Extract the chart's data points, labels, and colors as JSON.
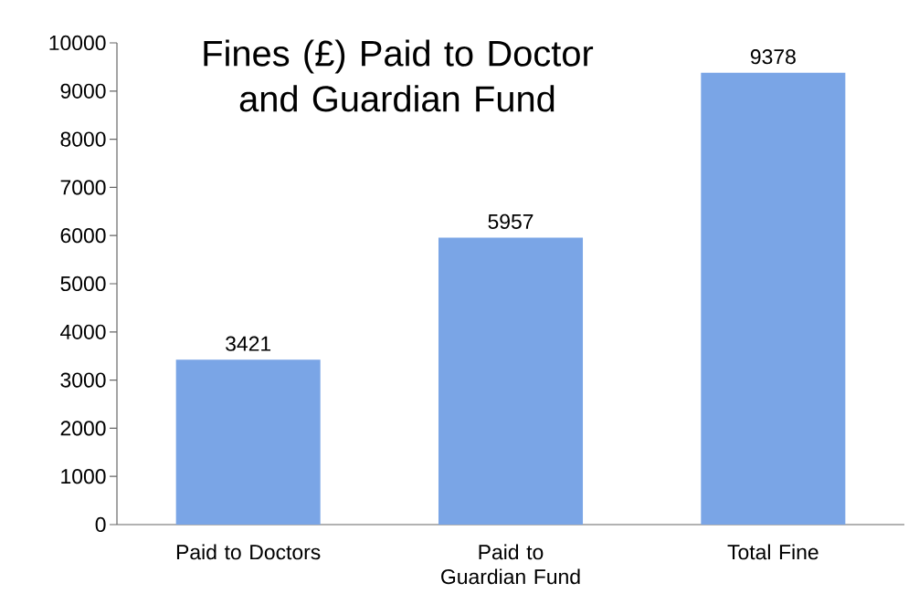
{
  "chart_data": {
    "type": "bar",
    "title": "Fines (£) Paid to Doctor and Guardian Fund",
    "categories": [
      "Paid to Doctors",
      "Paid to Guardian Fund",
      "Total Fine"
    ],
    "values": [
      3421,
      5957,
      9378
    ],
    "color": "#7aa5e6",
    "ylim": [
      0,
      10000
    ],
    "yticks": [
      0,
      1000,
      2000,
      3000,
      4000,
      5000,
      6000,
      7000,
      8000,
      9000,
      10000
    ],
    "data_labels": true
  }
}
